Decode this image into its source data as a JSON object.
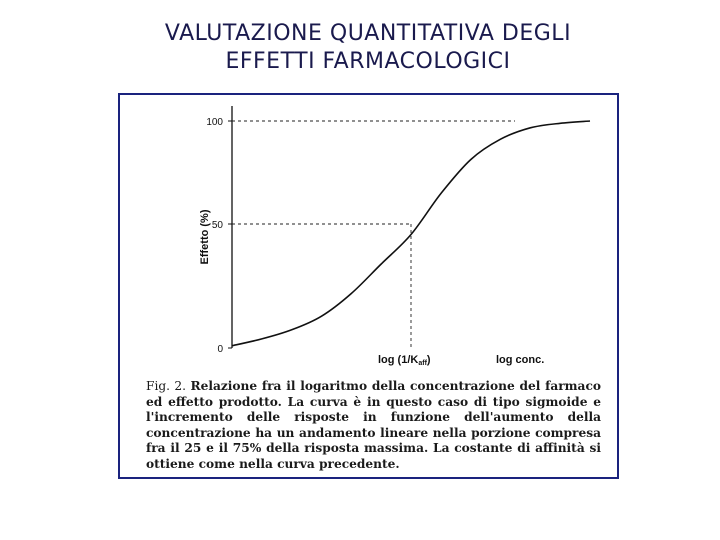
{
  "slide": {
    "title_line1": "VALUTAZIONE QUANTITATIVA DEGLI",
    "title_line2": "EFFETTI FARMACOLOGICI"
  },
  "figure": {
    "caption_label": "Fig. 2.",
    "caption_text": "Relazione fra il logaritmo della concentrazione del farmaco ed effetto prodotto. La curva è in questo caso di tipo sigmoide e l'incremento delle risposte in funzione dell'aumento della concentrazione ha un andamento lineare nella porzione compresa fra il 25 e il 75% della risposta massima. La costante di affinità si ottiene come nella curva precedente."
  },
  "chart_data": {
    "type": "line",
    "title": "",
    "xlabel": "log conc.",
    "ylabel": "Effetto (%)",
    "ylim": [
      0,
      100
    ],
    "yticks": [
      0,
      50,
      100
    ],
    "xtick_labels": [
      "log (1/K",
      "aff",
      ")"
    ],
    "x_marker_label": "log (1/Kaff)",
    "reference_lines": [
      {
        "type": "horizontal",
        "y": 100,
        "style": "dashed"
      },
      {
        "type": "horizontal",
        "y": 50,
        "style": "dashed"
      },
      {
        "type": "vertical",
        "at": "log (1/Kaff)",
        "style": "dashed"
      }
    ],
    "series": [
      {
        "x": [
          -3.0,
          -2.5,
          -2.0,
          -1.5,
          -1.0,
          -0.5,
          0.0,
          0.5,
          1.0,
          1.5,
          2.0,
          2.5,
          3.0
        ],
        "values": [
          1,
          4,
          8,
          14,
          24,
          37,
          50,
          68,
          83,
          92,
          97,
          99,
          100
        ]
      }
    ],
    "grid": false
  }
}
